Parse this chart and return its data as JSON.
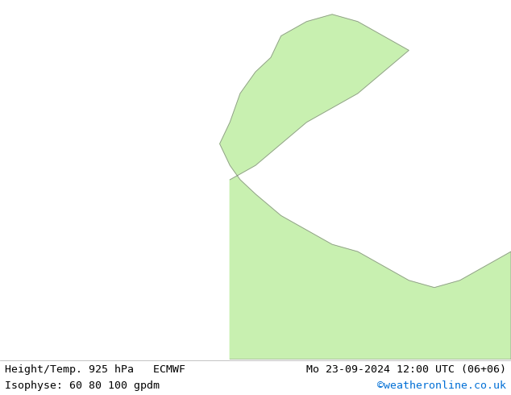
{
  "title_left": "Height/Temp. 925 hPa   ECMWF",
  "title_right": "Mo 23-09-2024 12:00 UTC (06+06)",
  "subtitle_left": "Isophyse: 60 80 100 gpdm",
  "subtitle_right": "©weatheronline.co.uk",
  "subtitle_right_color": "#006fd6",
  "bg_color": "#ffffff",
  "land_color": "#c8f0b0",
  "sea_color": "#d8d8d8",
  "coastline_color": "#888888",
  "text_color": "#000000",
  "font_size_title": 9.5,
  "font_size_subtitle": 9.5,
  "fig_width": 6.34,
  "fig_height": 4.9,
  "dpi": 100,
  "map_extent": [
    -45,
    55,
    25,
    75
  ],
  "isoline_colors": [
    "#cc00cc",
    "#0088ff",
    "#ff8800",
    "#ffff00",
    "#00cc00",
    "#ff0000",
    "#00cccc",
    "#ff44ff",
    "#8844ff",
    "#44aaff",
    "#ff6644",
    "#88ff44"
  ],
  "isoline_offsets": [
    0,
    0.04,
    0.08,
    0.12,
    0.16,
    0.2,
    0.24,
    0.28,
    0.32,
    0.36,
    0.4,
    0.44
  ]
}
